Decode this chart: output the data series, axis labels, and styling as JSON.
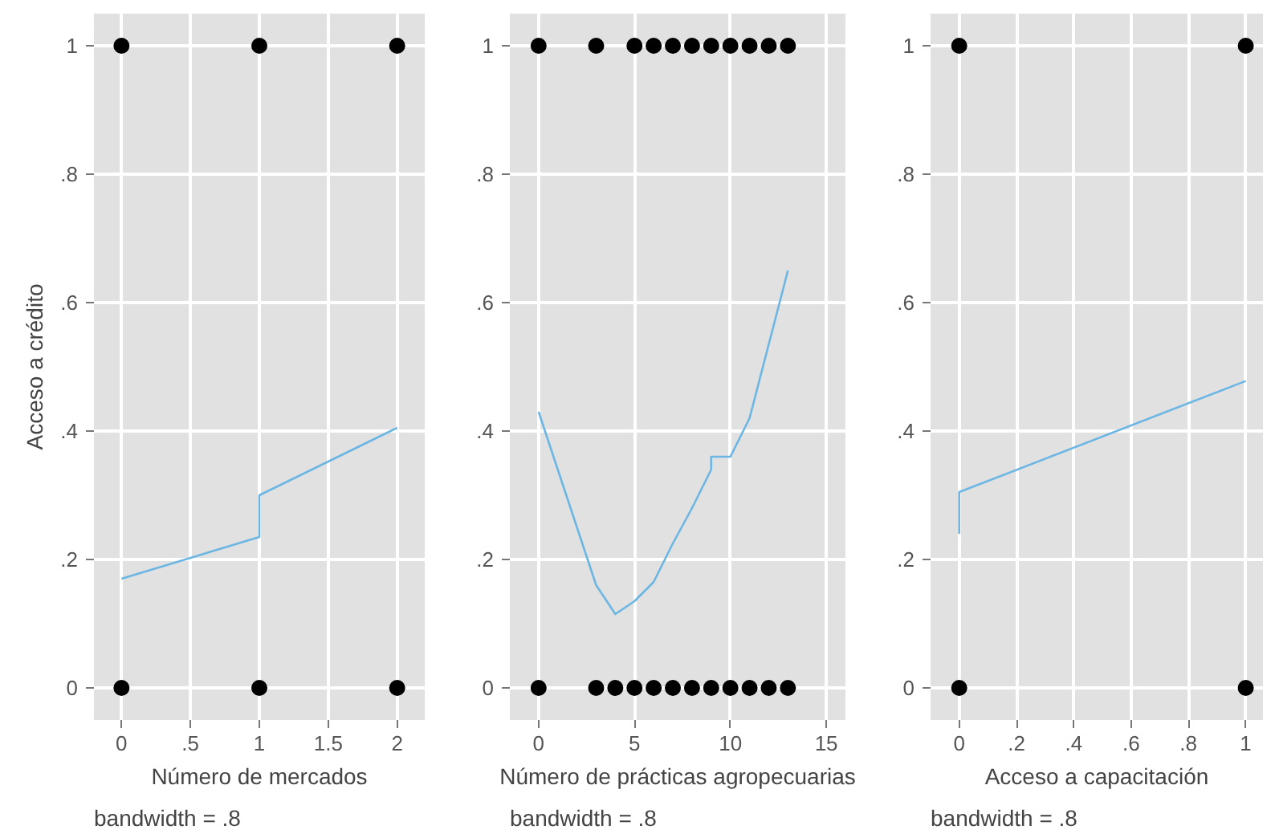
{
  "chart_data": [
    {
      "type": "scatter",
      "xlabel": "Número de mercados",
      "ylabel": "Acceso a crédito",
      "xlim": [
        -0.2,
        2.2
      ],
      "ylim": [
        -0.05,
        1.05
      ],
      "xticks": [
        0,
        {
          "value": 0.5,
          "label": ".5"
        },
        1,
        1.5,
        2
      ],
      "yticks": [
        0,
        {
          "value": 0.2,
          "label": ".2"
        },
        {
          "value": 0.4,
          "label": ".4"
        },
        {
          "value": 0.6,
          "label": ".6"
        },
        {
          "value": 0.8,
          "label": ".8"
        },
        1
      ],
      "grid": true,
      "marker": "circle",
      "annotations": [
        "bandwidth = .8"
      ],
      "series": [
        {
          "color": "#000000",
          "x": [
            0,
            1,
            2,
            0,
            1,
            2
          ],
          "values": [
            1,
            1,
            1,
            0,
            0,
            0
          ]
        },
        {
          "type": "line",
          "marker": "none",
          "color": "#6cb6e4",
          "x": [
            0,
            1,
            1,
            2
          ],
          "values": [
            0.17,
            0.235,
            0.3,
            0.405
          ]
        }
      ]
    },
    {
      "type": "scatter",
      "xlabel": "Número de prácticas agropecuarias",
      "xlim": [
        -1.5,
        16
      ],
      "ylim": [
        -0.05,
        1.05
      ],
      "xticks": [
        0,
        5,
        10,
        15
      ],
      "yticks": [
        0,
        {
          "value": 0.2,
          "label": ".2"
        },
        {
          "value": 0.4,
          "label": ".4"
        },
        {
          "value": 0.6,
          "label": ".6"
        },
        {
          "value": 0.8,
          "label": ".8"
        },
        1
      ],
      "grid": true,
      "marker": "circle",
      "annotations": [
        "bandwidth = .8"
      ],
      "series": [
        {
          "color": "#000000",
          "x": [
            0,
            3,
            5,
            6,
            7,
            8,
            9,
            10,
            11,
            12,
            13,
            0,
            3,
            4,
            5,
            6,
            7,
            8,
            9,
            10,
            11,
            12,
            13
          ],
          "values": [
            1,
            1,
            1,
            1,
            1,
            1,
            1,
            1,
            1,
            1,
            1,
            0,
            0,
            0,
            0,
            0,
            0,
            0,
            0,
            0,
            0,
            0,
            0
          ]
        },
        {
          "type": "line",
          "marker": "none",
          "color": "#6cb6e4",
          "x": [
            0,
            3,
            4,
            5,
            6,
            7,
            8,
            9,
            9,
            10,
            11,
            13
          ],
          "values": [
            0.43,
            0.16,
            0.115,
            0.135,
            0.165,
            0.225,
            0.28,
            0.34,
            0.36,
            0.36,
            0.42,
            0.65
          ]
        }
      ]
    },
    {
      "type": "scatter",
      "xlabel": "Acceso a capacitación",
      "xlim": [
        -0.1,
        1.06
      ],
      "ylim": [
        -0.05,
        1.05
      ],
      "xticks": [
        0,
        {
          "value": 0.2,
          "label": ".2"
        },
        {
          "value": 0.4,
          "label": ".4"
        },
        {
          "value": 0.6,
          "label": ".6"
        },
        {
          "value": 0.8,
          "label": ".8"
        },
        1
      ],
      "yticks": [
        0,
        {
          "value": 0.2,
          "label": ".2"
        },
        {
          "value": 0.4,
          "label": ".4"
        },
        {
          "value": 0.6,
          "label": ".6"
        },
        {
          "value": 0.8,
          "label": ".8"
        },
        1
      ],
      "grid": true,
      "marker": "circle",
      "annotations": [
        "bandwidth = .8"
      ],
      "series": [
        {
          "color": "#000000",
          "x": [
            0,
            1,
            0,
            1
          ],
          "values": [
            1,
            1,
            0,
            0
          ]
        },
        {
          "type": "line",
          "marker": "none",
          "color": "#6cb6e4",
          "x": [
            0,
            0,
            1
          ],
          "values": [
            0.24,
            0.305,
            0.478
          ]
        }
      ]
    }
  ]
}
